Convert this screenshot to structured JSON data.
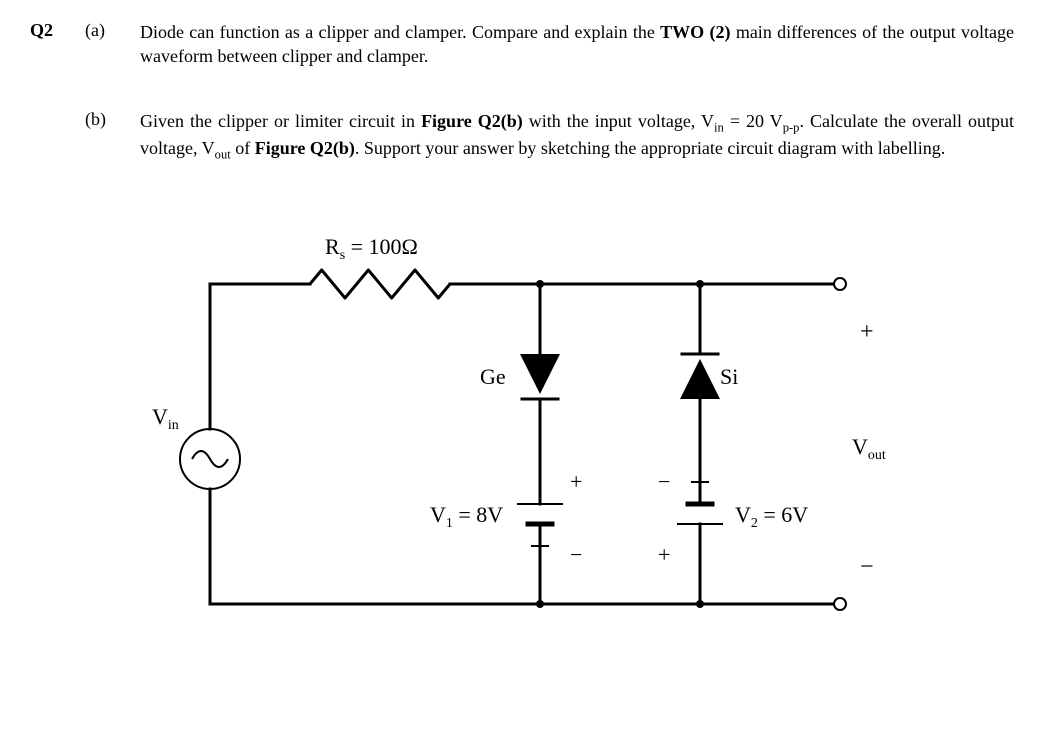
{
  "question": {
    "number": "Q2",
    "parts": {
      "a": {
        "label": "(a)",
        "text_before_bold": "Diode can function as a clipper and clamper. Compare and explain the ",
        "bold": "TWO (2)",
        "text_after_bold": " main differences of the output voltage waveform between clipper and clamper."
      },
      "b": {
        "label": "(b)",
        "line1_a": "Given the clipper or limiter circuit in ",
        "line1_fig": "Figure Q2(b)",
        "line1_b": " with the input voltage, V",
        "line1_sub1": "in",
        "line1_c": " = 20 V",
        "line1_sub2": "p-p",
        "line1_d": ". Calculate the overall output voltage, V",
        "line1_sub3": "out",
        "line1_e": " of ",
        "line1_fig2": "Figure Q2(b)",
        "line1_f": ". Support your answer by sketching the appropriate circuit diagram with labelling."
      }
    }
  },
  "circuit": {
    "Rs_label": "R",
    "Rs_sub": "s",
    "Rs_value": " = 100Ω",
    "Vin_label": "V",
    "Vin_sub": "in",
    "Ge_label": "Ge",
    "Si_label": "Si",
    "V1_label": "V",
    "V1_sub": "1",
    "V1_value": " = 8V",
    "V2_label": "V",
    "V2_sub": "2",
    "V2_value": " = 6V",
    "Vout_label": "V",
    "Vout_sub": "out",
    "plus": "+",
    "minus": "−",
    "stroke": "#000000",
    "line_width": 3,
    "thin_width": 2,
    "font_size_large": 22,
    "font_size_sub": 14
  }
}
